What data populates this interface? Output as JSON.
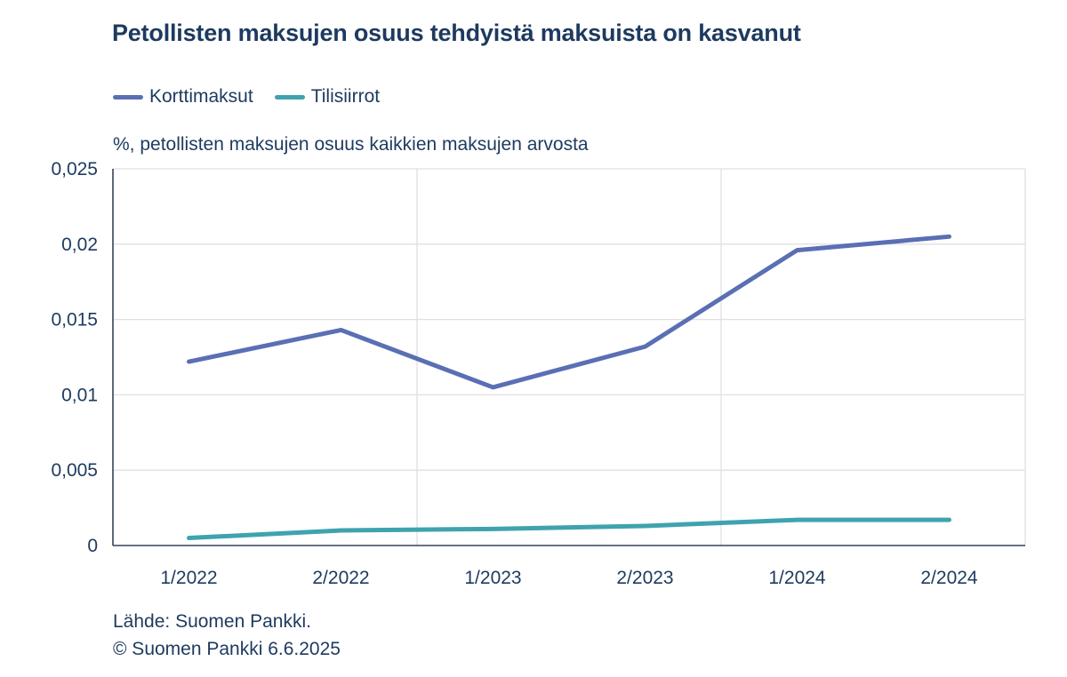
{
  "header": {
    "title": "Petollisten maksujen osuus tehdyistä maksuista on kasvanut"
  },
  "chart_data": {
    "type": "line",
    "title": "Petollisten maksujen osuus tehdyistä maksuista on kasvanut",
    "subtitle": "%, petollisten maksujen osuus kaikkien maksujen arvosta",
    "categories": [
      "1/2022",
      "2/2022",
      "1/2023",
      "2/2023",
      "1/2024",
      "2/2024"
    ],
    "series": [
      {
        "name": "Korttimaksut",
        "color": "#5a6fb4",
        "values": [
          0.0122,
          0.0143,
          0.0105,
          0.0132,
          0.0196,
          0.0205
        ]
      },
      {
        "name": "Tilisiirrot",
        "color": "#3fa3ae",
        "values": [
          0.0005,
          0.001,
          0.0011,
          0.0013,
          0.0017,
          0.0017
        ]
      }
    ],
    "ylim": [
      0,
      0.025
    ],
    "yticks": {
      "values": [
        0,
        0.005,
        0.01,
        0.015,
        0.02,
        0.025
      ],
      "labels": [
        "0",
        "0,005",
        "0,01",
        "0,015",
        "0,02",
        "0,025"
      ]
    },
    "xlabel": "",
    "ylabel": "%, petollisten maksujen osuus kaikkien maksujen arvosta",
    "grid": {
      "horizontal": true,
      "vertical_separator_indices": [
        2,
        4
      ]
    },
    "legend_position": "top"
  },
  "footer": {
    "source": "Lähde: Suomen Pankki.",
    "copyright": "© Suomen Pankki 6.6.2025"
  },
  "colors": {
    "text": "#1d3a5f",
    "axis": "#37415a",
    "grid": "#e0e0e0",
    "series_korttimaksut": "#5a6fb4",
    "series_tilisiirrot": "#3fa3ae",
    "background": "#ffffff"
  }
}
